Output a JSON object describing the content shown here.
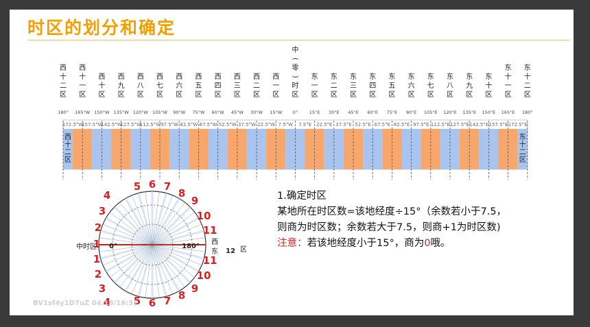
{
  "title": "时区的划分和确定",
  "zones": [
    "西十二区",
    "西十一区",
    "西十区",
    "西九区",
    "西八区",
    "西七区",
    "西六区",
    "西五区",
    "西四区",
    "西三区",
    "西二区",
    "西一区",
    "中（零）时区",
    "东一区",
    "东二区",
    "东三区",
    "东四区",
    "东五区",
    "东六区",
    "东七区",
    "东八区",
    "东九区",
    "东十区",
    "东十一区",
    "东十二区"
  ],
  "meridians": [
    "180°",
    "165°W",
    "150°W",
    "135°W",
    "120°W",
    "105°W",
    "90°W",
    "75°W",
    "60°W",
    "45°W",
    "30°W",
    "15°W",
    "0°",
    "15°E",
    "30°E",
    "45°E",
    "60°E",
    "75°E",
    "90°E",
    "105°E",
    "120°E",
    "135°E",
    "150°E",
    "165°E",
    "180°"
  ],
  "boundaries": [
    "172.5°W",
    "157.5°W",
    "142.5°W",
    "127.5°W",
    "112.5°W",
    "97.5°W",
    "82.5°W",
    "67.5°W",
    "52.5°W",
    "37.5°W",
    "22.5°W",
    "7.5°W",
    "7.5°E",
    "22.5°E",
    "37.5°E",
    "52.5°E",
    "67.5°E",
    "82.5°E",
    "97.5°E",
    "112.5°E",
    "127.5°E",
    "142.5°E",
    "157.5°E",
    "172.5°E"
  ],
  "band_labels": {
    "west": "西十二区",
    "east": "东十二区"
  },
  "band_colors": {
    "blue": "#a9c4ee",
    "orange": "#f7a66c"
  },
  "dial": {
    "digits_left": [
      "4",
      "3",
      "2",
      "1",
      "1",
      "2",
      "3",
      "4"
    ],
    "digits_top": [
      "5",
      "6",
      "7",
      "8",
      "9"
    ],
    "digits_bottom": [
      "5",
      "6",
      "7",
      "8",
      "9"
    ],
    "digits_right": [
      "10",
      "11",
      "11",
      "10"
    ],
    "center_label": "中时区",
    "zero_label": "0°",
    "d180_label": "180°",
    "side_west": "西",
    "side_east": "东",
    "twelve_num": "12",
    "twelve_suffix": "区"
  },
  "text": {
    "heading": "1.确定时区",
    "line1": "某地所在时区数=该地经度÷15°（余数若小于7.5，",
    "line2": "则商为时区数；余数若大于7.5，则商+1为时区数)",
    "note_label": "注意：",
    "note_body": "若该地经度小于15°，商为",
    "note_zero": "0",
    "note_end": "哦。"
  },
  "watermark": "BV1sf4y1D7uZ 04:18/16:31",
  "colors": {
    "title": "#f0a000",
    "accent_red": "#d82020"
  }
}
